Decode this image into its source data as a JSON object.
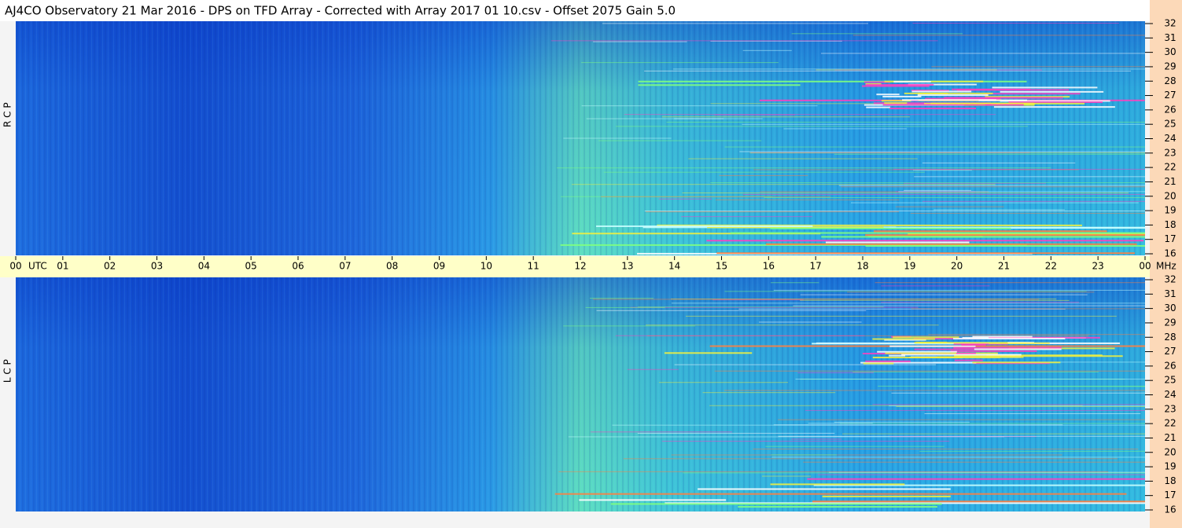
{
  "header": {
    "title": "AJ4CO Observatory  21 Mar 2016  -  DPS on TFD Array  -  Corrected with Array 2017 01 10.csv  -  Offset 2075  Gain 5.0"
  },
  "panels": [
    {
      "label": "R C P"
    },
    {
      "label": "L C P"
    }
  ],
  "frequency_ticks": [
    32,
    31,
    30,
    29,
    28,
    27,
    26,
    25,
    24,
    23,
    22,
    21,
    20,
    19,
    18,
    17,
    16
  ],
  "time_axis": {
    "hours": [
      "00",
      "01",
      "02",
      "03",
      "04",
      "05",
      "06",
      "07",
      "08",
      "09",
      "10",
      "11",
      "12",
      "13",
      "14",
      "15",
      "16",
      "17",
      "18",
      "19",
      "20",
      "21",
      "22",
      "23",
      "00"
    ],
    "utc_label": "UTC",
    "unit_label": "MHz"
  }
}
